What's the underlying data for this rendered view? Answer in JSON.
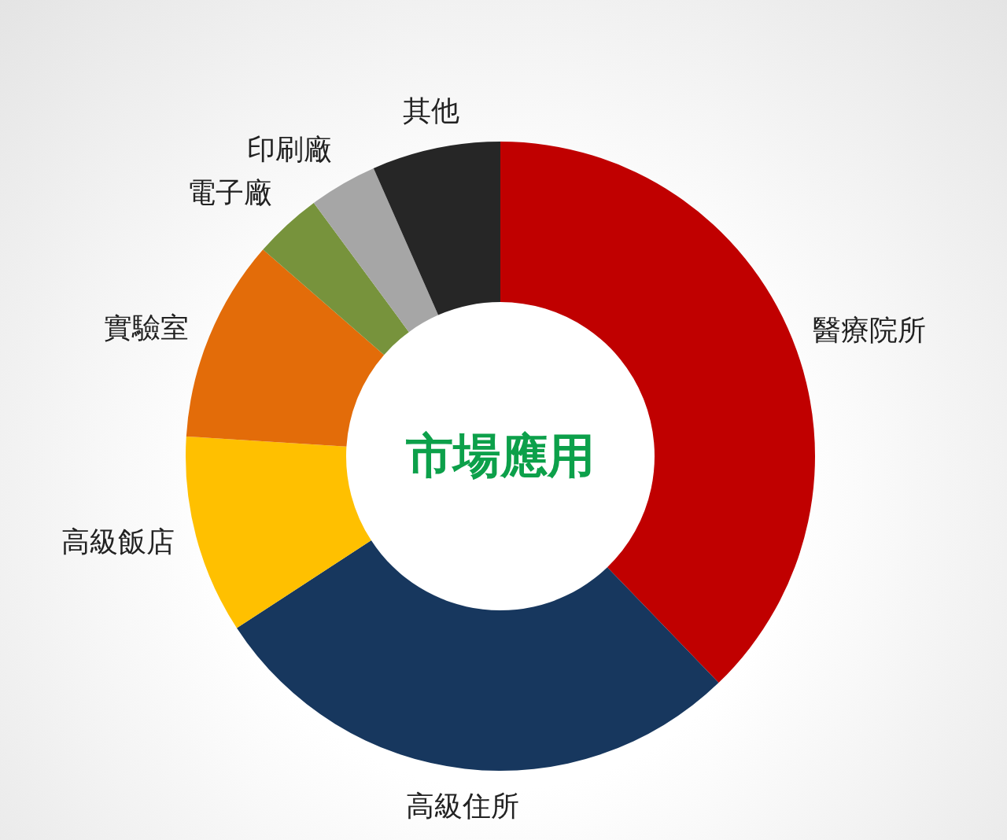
{
  "chart_data": {
    "type": "donut",
    "title": "市場應用",
    "categories": [
      "醫療院所",
      "高級住所",
      "高級飯店",
      "實驗室",
      "電子廠",
      "印刷廠",
      "其他"
    ],
    "values": [
      37.8,
      28,
      10.2,
      10.4,
      3.5,
      3.5,
      6.6
    ],
    "colors": [
      "#c00000",
      "#17375e",
      "#ffc000",
      "#e36c09",
      "#77933c",
      "#a6a6a6",
      "#262626"
    ]
  }
}
